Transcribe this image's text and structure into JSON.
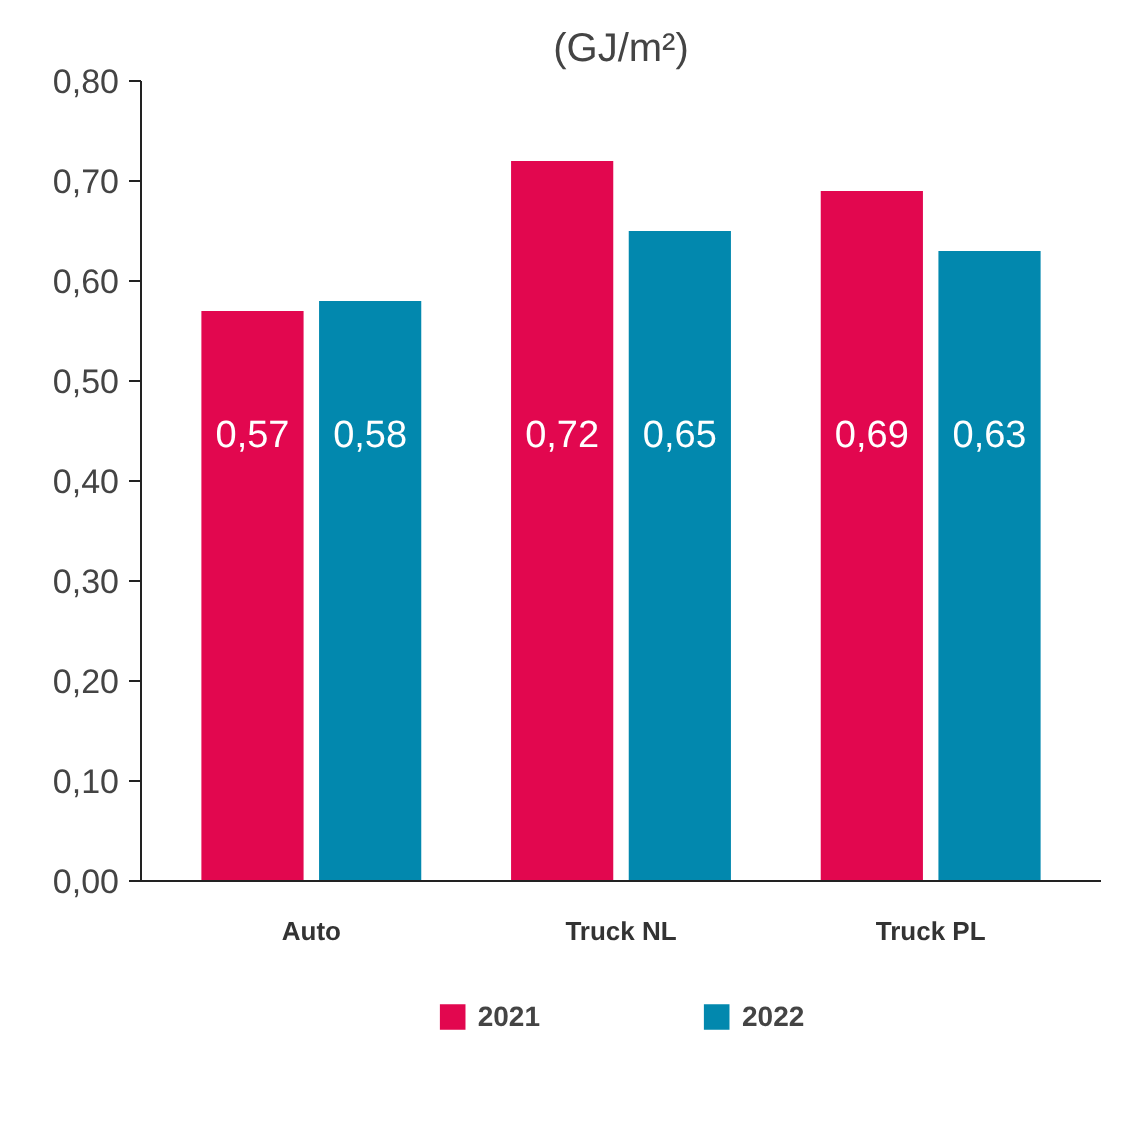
{
  "chart_data": {
    "type": "bar",
    "title": "(GJ/m²)",
    "categories": [
      "Auto",
      "Truck NL",
      "Truck PL"
    ],
    "series": [
      {
        "name": "2021",
        "color": "#e2074f",
        "values": [
          0.57,
          0.72,
          0.69
        ],
        "value_labels": [
          "0,57",
          "0,72",
          "0,69"
        ]
      },
      {
        "name": "2022",
        "color": "#0288ae",
        "values": [
          0.58,
          0.65,
          0.63
        ],
        "value_labels": [
          "0,58",
          "0,65",
          "0,63"
        ]
      }
    ],
    "ylim": [
      0,
      0.8
    ],
    "yticks": [
      {
        "value": 0,
        "label": "0,00"
      },
      {
        "value": 0.1,
        "label": "0,10"
      },
      {
        "value": 0.2,
        "label": "0,20"
      },
      {
        "value": 0.3,
        "label": "0,30"
      },
      {
        "value": 0.4,
        "label": "0,40"
      },
      {
        "value": 0.5,
        "label": "0,50"
      },
      {
        "value": 0.6,
        "label": "0,60"
      },
      {
        "value": 0.7,
        "label": "0,70"
      },
      {
        "value": 0.8,
        "label": "0,80"
      }
    ],
    "grid": false,
    "legend": "bottom"
  }
}
